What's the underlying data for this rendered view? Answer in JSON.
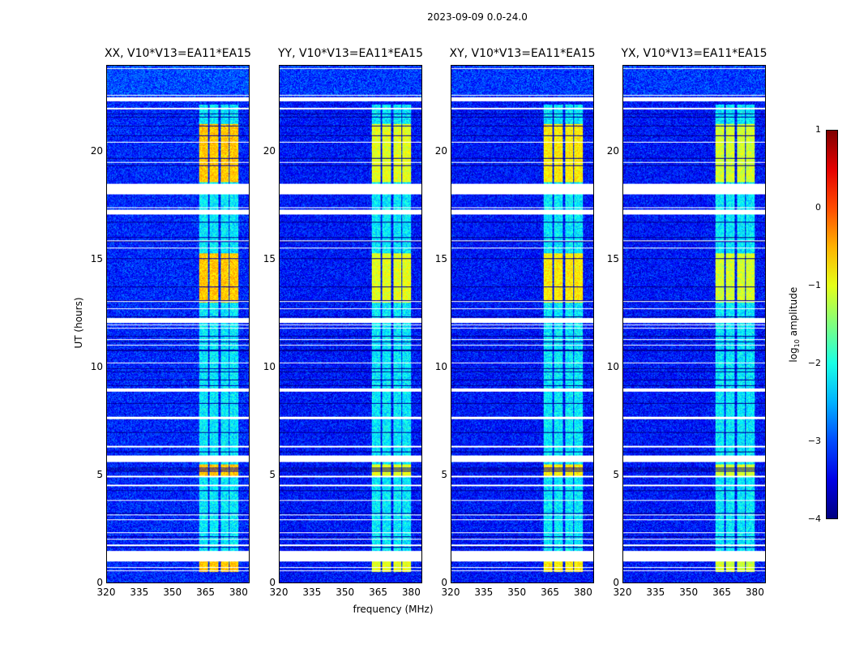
{
  "chart_data": {
    "type": "heatmap",
    "title": "2023-09-09 0.0-24.0",
    "xlabel": "frequency (MHz)",
    "ylabel": "UT (hours)",
    "xlim": [
      320,
      385
    ],
    "ylim": [
      0,
      24
    ],
    "xticks": [
      "320",
      "335",
      "350",
      "365",
      "380"
    ],
    "yticks": [
      "0",
      "5",
      "10",
      "15",
      "20"
    ],
    "panels": [
      {
        "title": "XX, V10*V13=EA11*EA15",
        "rfi_level": -0.6,
        "bg_level": -3.2
      },
      {
        "title": "YY, V10*V13=EA11*EA15",
        "rfi_level": -1.0,
        "bg_level": -3.3
      },
      {
        "title": "XY, V10*V13=EA11*EA15",
        "rfi_level": -0.8,
        "bg_level": -3.3
      },
      {
        "title": "YX, V10*V13=EA11*EA15",
        "rfi_level": -1.1,
        "bg_level": -3.3
      }
    ],
    "rfi_subbands_mhz": [
      [
        362,
        366
      ],
      [
        367,
        371
      ],
      [
        372,
        375.5
      ],
      [
        376,
        380
      ]
    ],
    "flagged_hours": [
      [
        22.35,
        22.55
      ],
      [
        22.0,
        22.05
      ],
      [
        18.05,
        18.5
      ],
      [
        17.1,
        17.35
      ],
      [
        12.1,
        12.3
      ],
      [
        10.2,
        10.25
      ],
      [
        8.9,
        9.05
      ],
      [
        7.6,
        7.7
      ],
      [
        6.3,
        6.35
      ],
      [
        5.6,
        5.9
      ],
      [
        4.9,
        4.95
      ],
      [
        4.5,
        4.55
      ],
      [
        3.8,
        3.85
      ],
      [
        2.9,
        2.95
      ],
      [
        2.3,
        2.35
      ],
      [
        1.0,
        1.5
      ],
      [
        0.55,
        0.6
      ]
    ],
    "colorbar": {
      "label": "log10 amplitude",
      "range": [
        -4,
        1
      ],
      "ticks": [
        "1",
        "0",
        "−1",
        "−2",
        "−3",
        "−4"
      ],
      "colormap": "jet"
    }
  }
}
